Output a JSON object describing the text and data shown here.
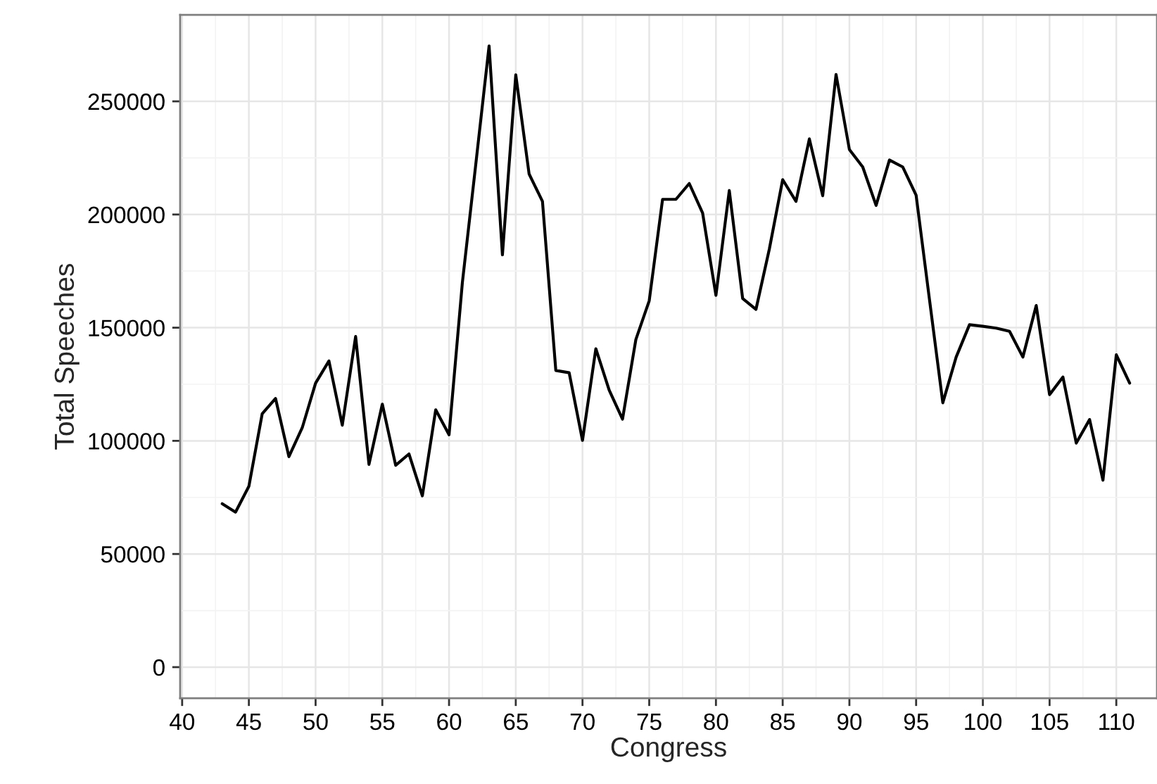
{
  "chart_data": {
    "type": "line",
    "xlabel": "Congress",
    "ylabel": "Total Speeches",
    "x": [
      43,
      44,
      45,
      46,
      47,
      48,
      49,
      50,
      51,
      52,
      53,
      54,
      55,
      56,
      57,
      58,
      59,
      60,
      61,
      62,
      63,
      64,
      65,
      66,
      67,
      68,
      69,
      70,
      71,
      72,
      73,
      74,
      75,
      76,
      77,
      78,
      79,
      80,
      81,
      82,
      83,
      84,
      85,
      86,
      87,
      88,
      89,
      90,
      91,
      92,
      93,
      94,
      95,
      96,
      97,
      98,
      99,
      100,
      101,
      102,
      103,
      104,
      105,
      106,
      107,
      108,
      109,
      110,
      111
    ],
    "series": [
      {
        "color": "#000000",
        "values": [
          72200,
          68500,
          79900,
          112000,
          118700,
          93000,
          105800,
          125500,
          135300,
          106900,
          146100,
          89600,
          116200,
          89200,
          94200,
          75700,
          113700,
          102700,
          170000,
          222000,
          274500,
          182200,
          261700,
          217900,
          205800,
          131100,
          130100,
          100200,
          140700,
          122400,
          109600,
          144800,
          161900,
          206700,
          206700,
          213700,
          200700,
          164300,
          210600,
          162900,
          158100,
          184700,
          215400,
          205800,
          233400,
          208300,
          261900,
          228700,
          221000,
          204000,
          224100,
          221000,
          208500,
          162500,
          116800,
          137000,
          151300,
          150600,
          149800,
          148400,
          137000,
          159800,
          120400,
          128200,
          99000,
          109400,
          82600,
          138000,
          125500
        ]
      }
    ],
    "xlim": [
      39.85,
      113.05
    ],
    "ylim": [
      -13700,
      288200
    ],
    "xticks": [
      40,
      45,
      50,
      55,
      60,
      65,
      70,
      75,
      80,
      85,
      90,
      95,
      100,
      105,
      110
    ],
    "yticks": [
      0,
      50000,
      100000,
      150000,
      200000,
      250000
    ],
    "grid": true,
    "line_style": "solid",
    "marker": "none",
    "legend": false
  }
}
